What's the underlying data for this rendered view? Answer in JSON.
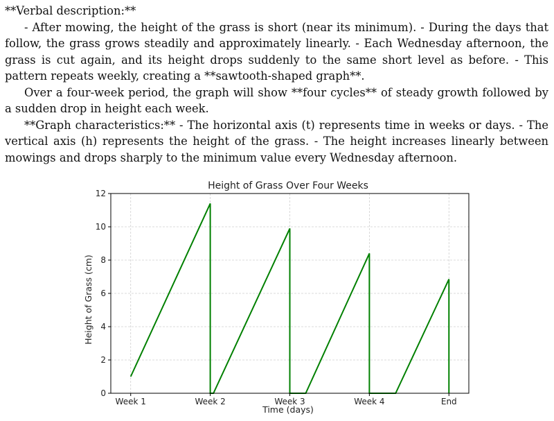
{
  "text": {
    "p1": "**Verbal description:**",
    "p2": "- After mowing, the height of the grass is short (near its minimum). - During the days that follow, the grass grows steadily and approximately linearly. - Each Wednesday afternoon, the grass is cut again, and its height drops suddenly to the same short level as before. - This pattern repeats weekly, creating a **sawtooth-shaped graph**.",
    "p3": "Over a four-week period, the graph will show **four cycles** of steady growth followed by a sudden drop in height each week.",
    "p4": "**Graph characteristics:** - The horizontal axis (t) represents time in weeks or days. - The vertical axis (h) represents the height of the grass. - The height increases linearly between mowings and drops sharply to the minimum value every Wednesday afternoon."
  },
  "chart_data": {
    "type": "line",
    "title": "Height of Grass Over Four Weeks",
    "xlabel": "Time (days)",
    "ylabel": "Height of Grass (cm)",
    "xlim": [
      -0.25,
      4.25
    ],
    "ylim": [
      0,
      12
    ],
    "x_ticks": [
      0,
      1,
      2,
      3,
      4
    ],
    "x_tick_labels": [
      "Week 1",
      "Week 2",
      "Week 3",
      "Week 4",
      "End"
    ],
    "y_ticks": [
      0,
      2,
      4,
      6,
      8,
      10,
      12
    ],
    "grid": true,
    "line_color": "#008000",
    "series": [
      {
        "x": [
          0.0,
          1.0,
          1.0,
          1.04,
          2.0,
          2.0,
          2.2,
          3.0,
          3.0,
          3.33,
          4.0,
          4.0
        ],
        "y": [
          1.0,
          11.4,
          0.0,
          0.0,
          9.9,
          0.0,
          0.0,
          8.4,
          0.0,
          0.0,
          6.85,
          0.0
        ]
      }
    ]
  }
}
